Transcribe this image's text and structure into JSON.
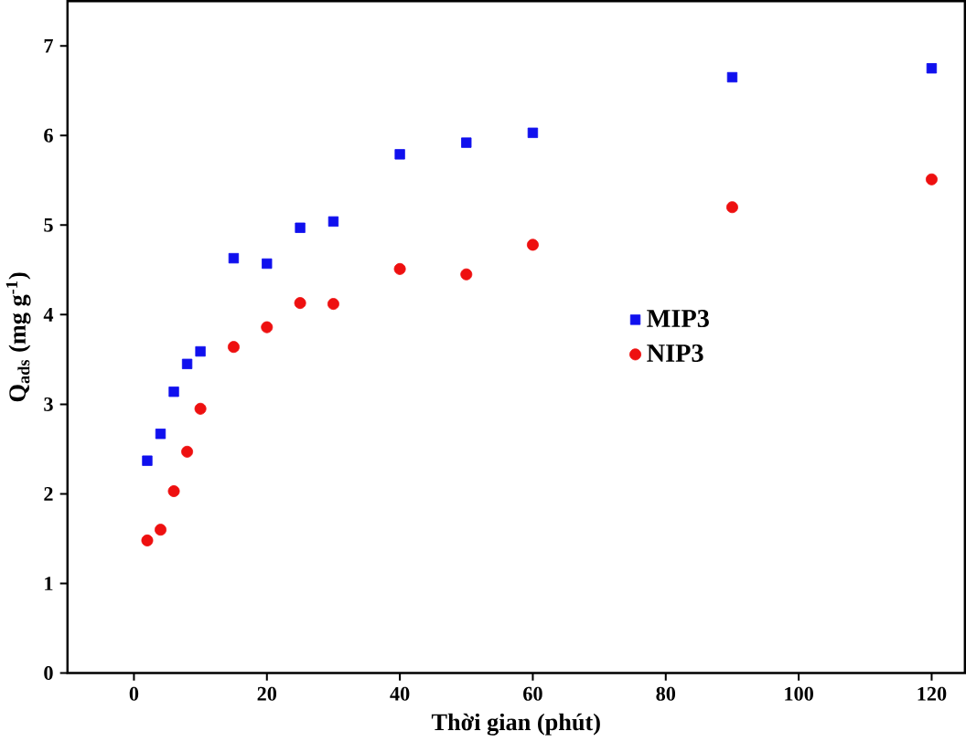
{
  "chart_data": {
    "type": "scatter",
    "xlabel": "Thời gian (phút)",
    "ylabel": "Q$_{ads}$ (mg g$^{-1}$)",
    "x": [
      2,
      4,
      6,
      8,
      10,
      15,
      20,
      25,
      30,
      40,
      50,
      60,
      90,
      120
    ],
    "series": [
      {
        "name": "MIP3",
        "color": "#1010ee",
        "marker": "square",
        "values": [
          2.37,
          2.67,
          3.14,
          3.45,
          3.59,
          4.63,
          4.57,
          4.97,
          5.04,
          5.79,
          5.92,
          6.03,
          6.65,
          6.75
        ]
      },
      {
        "name": "NIP3",
        "color": "#ee1010",
        "marker": "circle",
        "values": [
          1.48,
          1.6,
          2.03,
          2.47,
          2.95,
          3.64,
          3.86,
          4.13,
          4.12,
          4.51,
          4.45,
          4.78,
          5.2,
          5.51
        ]
      }
    ],
    "xlim": [
      -10,
      125
    ],
    "ylim": [
      0,
      7.5
    ],
    "xticks": [
      0,
      20,
      40,
      60,
      80,
      100,
      120
    ],
    "yticks": [
      0,
      1,
      2,
      3,
      4,
      5,
      6,
      7
    ],
    "legend": "right",
    "grid": false
  }
}
